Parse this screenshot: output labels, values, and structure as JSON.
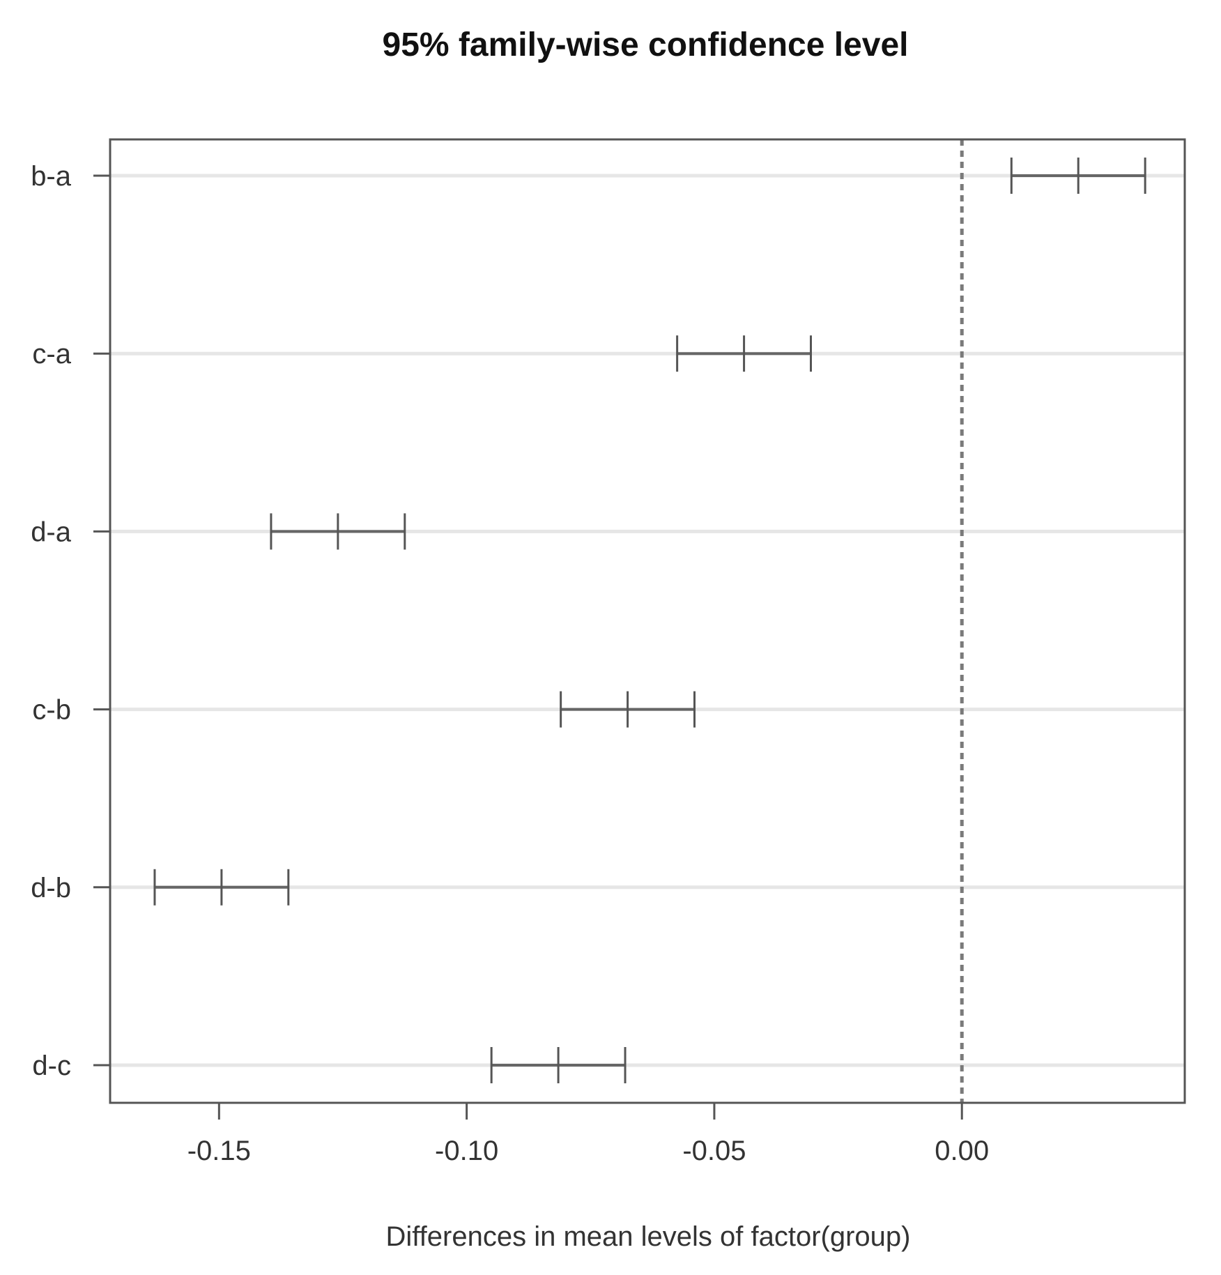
{
  "chart_data": {
    "type": "errorbar",
    "title": "95% family-wise confidence level",
    "xlabel": "Differences in mean levels of factor(group)",
    "ylabel": "",
    "xlim": [
      -0.172,
      0.045
    ],
    "xticks": [
      -0.15,
      -0.1,
      -0.05,
      0.0
    ],
    "xtick_labels": [
      "-0.15",
      "-0.10",
      "-0.05",
      "0.00"
    ],
    "reference_line": 0.0,
    "grid": "horizontal",
    "comparisons": [
      {
        "label": "b-a",
        "lower": 0.01,
        "estimate": 0.0235,
        "upper": 0.037
      },
      {
        "label": "c-a",
        "lower": -0.0575,
        "estimate": -0.044,
        "upper": -0.0305
      },
      {
        "label": "d-a",
        "lower": -0.1395,
        "estimate": -0.126,
        "upper": -0.1125
      },
      {
        "label": "c-b",
        "lower": -0.081,
        "estimate": -0.0675,
        "upper": -0.054
      },
      {
        "label": "d-b",
        "lower": -0.163,
        "estimate": -0.1495,
        "upper": -0.136
      },
      {
        "label": "d-c",
        "lower": -0.095,
        "estimate": -0.0815,
        "upper": -0.068
      }
    ]
  }
}
